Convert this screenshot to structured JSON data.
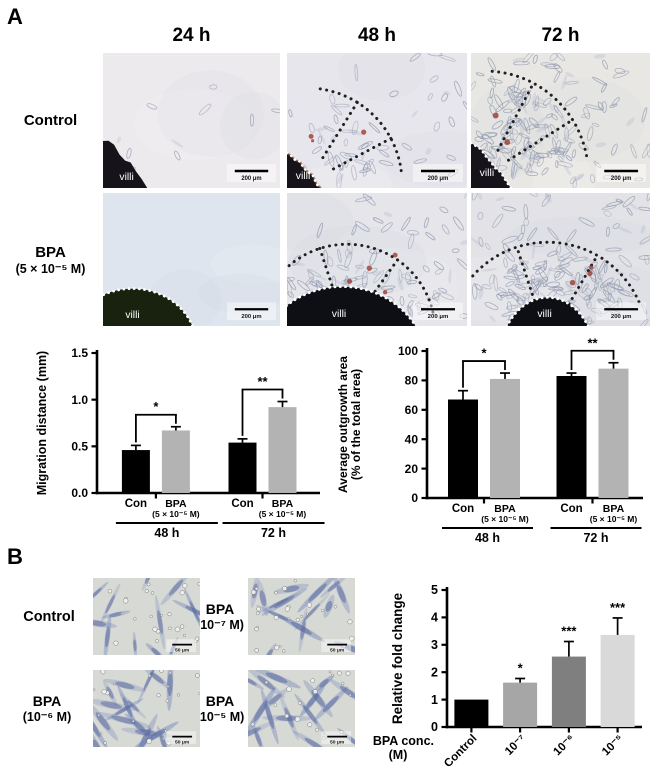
{
  "figure": {
    "panel_a": {
      "label": "A",
      "col_headers": [
        "24 h",
        "48 h",
        "72 h"
      ],
      "rows": [
        {
          "label_lines": [
            "Control"
          ],
          "images": [
            {
              "variant": "a_ctrl_24",
              "villi_label": "villi",
              "scale_label": "200 μm"
            },
            {
              "variant": "a_ctrl_48",
              "villi_label": "villi",
              "scale_label": "200 μm"
            },
            {
              "variant": "a_ctrl_72",
              "villi_label": "villi",
              "scale_label": "200 μm"
            }
          ]
        },
        {
          "label_lines": [
            "BPA",
            "(5 × 10⁻⁵ M)"
          ],
          "images": [
            {
              "variant": "a_bpa_24",
              "villi_label": "villi",
              "scale_label": "200 μm"
            },
            {
              "variant": "a_bpa_48",
              "villi_label": "villi",
              "scale_label": "200 μm"
            },
            {
              "variant": "a_bpa_72",
              "villi_label": "villi",
              "scale_label": "200 μm"
            }
          ]
        }
      ]
    },
    "panel_b": {
      "label": "B",
      "cells": [
        {
          "variant": "b_control",
          "label_lines": [
            "Control"
          ],
          "scale_label": "50 μm"
        },
        {
          "variant": "b_1e7",
          "label_lines": [
            "BPA",
            "(10⁻⁷ M)"
          ],
          "scale_label": "50 μm"
        },
        {
          "variant": "b_1e6",
          "label_lines": [
            "BPA",
            "(10⁻⁶ M)"
          ],
          "scale_label": "50 μm"
        },
        {
          "variant": "b_1e5",
          "label_lines": [
            "BPA",
            "(10⁻⁵ M)"
          ],
          "scale_label": "50 μm"
        }
      ]
    }
  },
  "chart_data": [
    {
      "id": "migration_distance",
      "type": "bar",
      "ylabel": "Migration distance (mm)",
      "ylim": [
        0,
        1.5
      ],
      "yticks": [
        "0.0",
        "0.5",
        "1.0",
        "1.5"
      ],
      "grid": false,
      "legend": "none",
      "groups": [
        {
          "label": "48 h",
          "sig": "*",
          "bars": [
            {
              "label_lines": [
                "Con"
              ],
              "value": 0.46,
              "error": 0.05,
              "color": "#000000"
            },
            {
              "label_lines": [
                "BPA",
                "(5 × 10⁻⁵ M)"
              ],
              "value": 0.67,
              "error": 0.04,
              "color": "#b3b3b3"
            }
          ]
        },
        {
          "label": "72 h",
          "sig": "**",
          "bars": [
            {
              "label_lines": [
                "Con"
              ],
              "value": 0.54,
              "error": 0.04,
              "color": "#000000"
            },
            {
              "label_lines": [
                "BPA",
                "(5 × 10⁻⁵ M)"
              ],
              "value": 0.92,
              "error": 0.06,
              "color": "#b3b3b3"
            }
          ]
        }
      ]
    },
    {
      "id": "outgrowth_area",
      "type": "bar",
      "ylabel_lines": [
        "Average outgrowth area",
        "(% of the total area)"
      ],
      "ylim": [
        0,
        100
      ],
      "yticks": [
        "0",
        "20",
        "40",
        "60",
        "80",
        "100"
      ],
      "grid": false,
      "legend": "none",
      "groups": [
        {
          "label": "48 h",
          "sig": "*",
          "bars": [
            {
              "label_lines": [
                "Con"
              ],
              "value": 67,
              "error": 6,
              "color": "#000000"
            },
            {
              "label_lines": [
                "BPA",
                "(5 × 10⁻⁵ M)"
              ],
              "value": 81,
              "error": 4,
              "color": "#b3b3b3"
            }
          ]
        },
        {
          "label": "72 h",
          "sig": "**",
          "bars": [
            {
              "label_lines": [
                "Con"
              ],
              "value": 83,
              "error": 2,
              "color": "#000000"
            },
            {
              "label_lines": [
                "BPA",
                "(5 × 10⁻⁵ M)"
              ],
              "value": 88,
              "error": 4,
              "color": "#b3b3b3"
            }
          ]
        }
      ]
    },
    {
      "id": "relative_fold_change",
      "type": "bar",
      "ylabel": "Relative fold change",
      "xlabel_lines": [
        "BPA conc.",
        "(M)"
      ],
      "ylim": [
        0,
        5
      ],
      "yticks": [
        "0",
        "1",
        "2",
        "3",
        "4",
        "5"
      ],
      "grid": false,
      "legend": "none",
      "bars": [
        {
          "label": "Control",
          "value": 1.0,
          "error": 0,
          "color": "#000000",
          "sig": ""
        },
        {
          "label": "10⁻⁷",
          "value": 1.62,
          "error": 0.15,
          "color": "#a6a6a6",
          "sig": "*"
        },
        {
          "label": "10⁻⁶",
          "value": 2.57,
          "error": 0.55,
          "color": "#7f7f7f",
          "sig": "***"
        },
        {
          "label": "10⁻⁵",
          "value": 3.36,
          "error": 0.62,
          "color": "#d9d9d9",
          "sig": "***"
        }
      ]
    }
  ]
}
